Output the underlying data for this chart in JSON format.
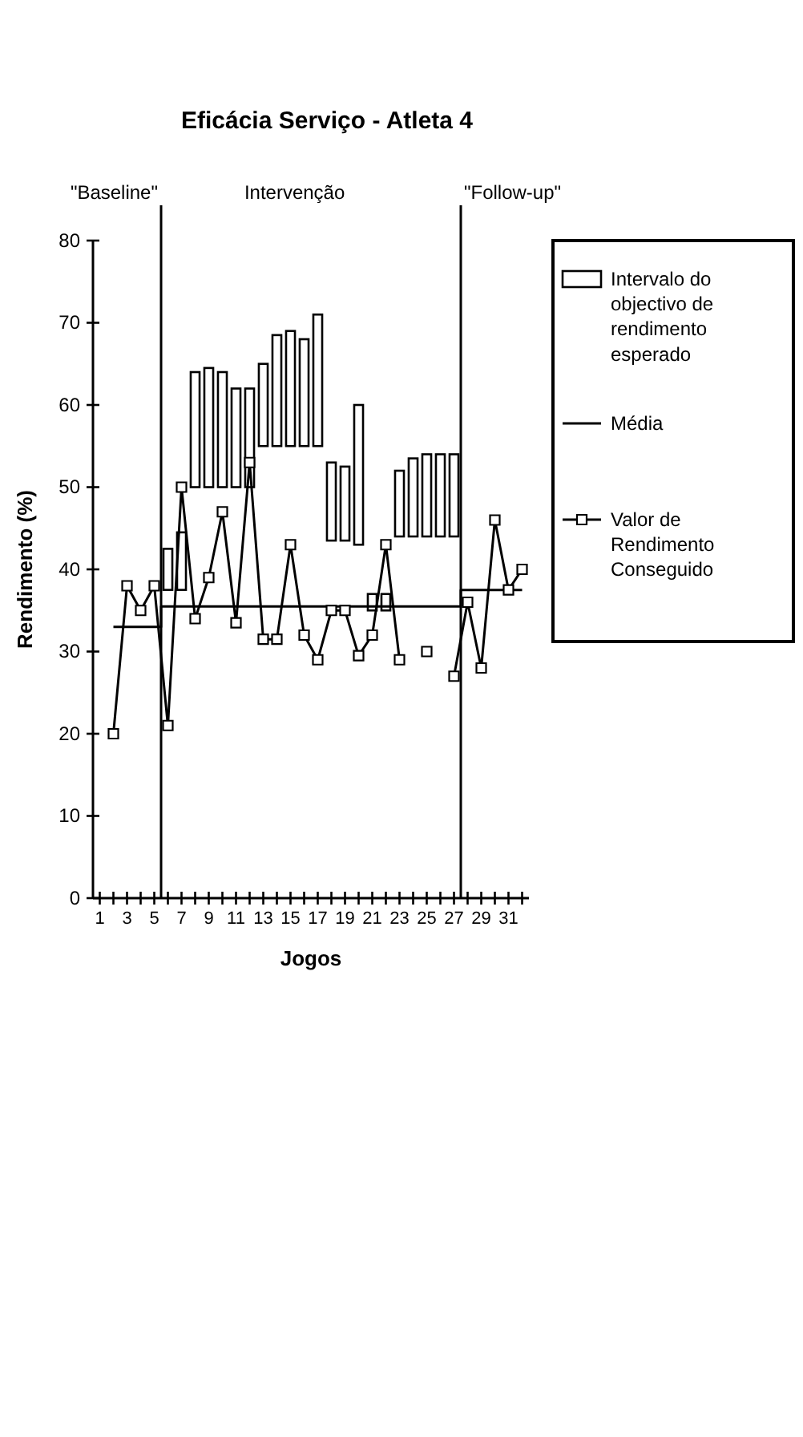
{
  "chart_data": {
    "type": "line",
    "title": "Eficácia Serviço - Atleta 4",
    "xlabel": "Jogos",
    "ylabel": "Rendimento (%)",
    "x": [
      2,
      3,
      4,
      5,
      6,
      7,
      8,
      9,
      10,
      11,
      12,
      13,
      14,
      15,
      16,
      17,
      18,
      19,
      20,
      21,
      22,
      23,
      24,
      25,
      26,
      27,
      28,
      29,
      30,
      31,
      32
    ],
    "xlim": [
      0.5,
      32.5
    ],
    "xticks": [
      1,
      {
        "value": 2,
        "label": null
      },
      3,
      {
        "value": 4,
        "label": null
      },
      5,
      {
        "value": 6,
        "label": null
      },
      7,
      {
        "value": 8,
        "label": null
      },
      9,
      {
        "value": 10,
        "label": null
      },
      11,
      {
        "value": 12,
        "label": null
      },
      13,
      {
        "value": 14,
        "label": null
      },
      15,
      {
        "value": 16,
        "label": null
      },
      17,
      {
        "value": 18,
        "label": null
      },
      19,
      {
        "value": 20,
        "label": null
      },
      21,
      {
        "value": 22,
        "label": null
      },
      23,
      {
        "value": 24,
        "label": null
      },
      25,
      {
        "value": 26,
        "label": null
      },
      27,
      {
        "value": 28,
        "label": null
      },
      29,
      {
        "value": 30,
        "label": null
      },
      31,
      {
        "value": 32,
        "label": null
      }
    ],
    "ylim": [
      0,
      80
    ],
    "yticks": [
      0,
      10,
      20,
      30,
      40,
      50,
      60,
      70,
      80
    ],
    "series": [
      {
        "type": "bar",
        "name": "Intervalo do objectivo de rendimento esperado",
        "color": "#000000",
        "base": [
          null,
          null,
          null,
          null,
          37.5,
          37.5,
          50,
          50,
          50,
          50,
          50,
          55,
          55,
          55,
          55,
          55,
          43.5,
          43.5,
          43,
          35,
          35,
          44,
          44,
          44,
          44,
          44,
          null,
          null,
          null,
          null,
          null
        ],
        "values": [
          null,
          null,
          null,
          null,
          5,
          7,
          14,
          14.5,
          14,
          12,
          12,
          10,
          13.5,
          14,
          13,
          16,
          9.5,
          9,
          17,
          2,
          2,
          8,
          9.5,
          10,
          10,
          10,
          null,
          null,
          null,
          null,
          null
        ]
      },
      {
        "name": "Média",
        "color": "#000000",
        "marker": "none",
        "x": [
          2,
          5.5,
          5.5,
          27.5,
          27.5,
          32
        ],
        "values": [
          33,
          33,
          35.5,
          35.5,
          37.5,
          37.5
        ]
      },
      {
        "name": "Valor de Rendimento Conseguido",
        "color": "#000000",
        "marker": "square",
        "values": [
          20,
          38,
          35,
          38,
          21,
          50,
          34,
          39,
          47,
          33.5,
          53,
          31.5,
          31.5,
          43,
          32,
          29,
          35,
          35,
          29.5,
          32,
          43,
          29,
          null,
          30,
          null,
          27,
          36,
          28,
          46,
          37.5,
          40
        ]
      }
    ],
    "ref_lines": [
      {
        "axis": "x",
        "value": 5.5,
        "label": "\"Baseline\""
      },
      {
        "axis": "x",
        "value": 27.5,
        "label": "\"Follow-up\""
      }
    ],
    "annotations": [
      "Intervenção"
    ],
    "legend": "right"
  }
}
